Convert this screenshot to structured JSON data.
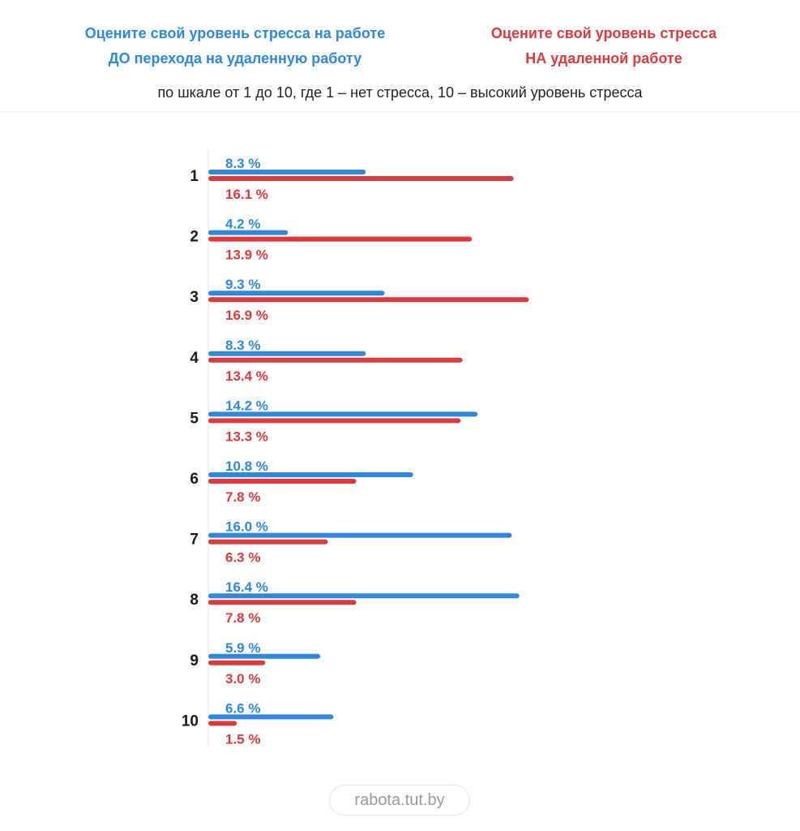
{
  "legend": {
    "before": [
      "Оцените свой уровень стресса на работе",
      "ДО перехода на удаленную работу"
    ],
    "after": [
      "Оцените свой уровень стресса",
      "НА удаленной работе"
    ]
  },
  "subtitle": "по шкале от 1 до 10, где 1 – нет стресса, 10 – высокий уровень стресса",
  "watermark": "rabota.tut.by",
  "colors": {
    "before": "#2f87e0",
    "after": "#dc3a3e",
    "category": "#1a1a1a",
    "axis": "#e2e2e2"
  },
  "chart_data": {
    "type": "bar",
    "orientation": "horizontal",
    "value_suffix": " %",
    "categories": [
      "1",
      "2",
      "3",
      "4",
      "5",
      "6",
      "7",
      "8",
      "9",
      "10"
    ],
    "series": [
      {
        "name": "Оцените свой уровень стресса на работе ДО перехода на удаленную работу",
        "color": "#2f87e0",
        "values": [
          8.3,
          4.2,
          9.3,
          8.3,
          14.2,
          10.8,
          16.0,
          16.4,
          5.9,
          6.6
        ]
      },
      {
        "name": "Оцените свой уровень стресса НА удаленной работе",
        "color": "#dc3a3e",
        "values": [
          16.1,
          13.9,
          16.9,
          13.4,
          13.3,
          7.8,
          6.3,
          7.8,
          3.0,
          1.5
        ]
      }
    ],
    "xlim": [
      0,
      17
    ],
    "grid": false,
    "legend_position": "top"
  }
}
